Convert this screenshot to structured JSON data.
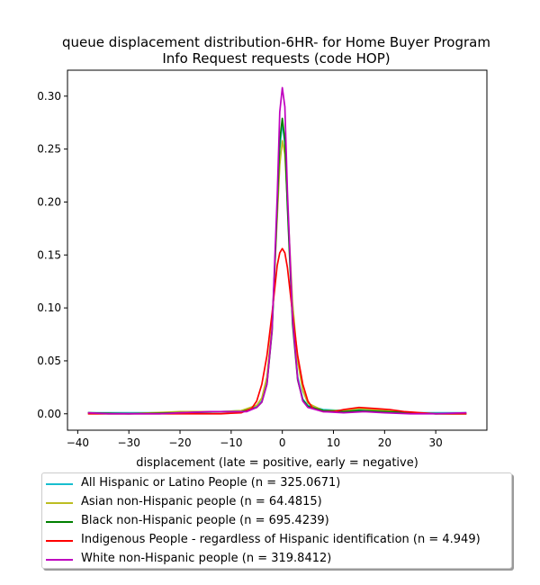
{
  "chart_data": {
    "type": "line",
    "title_line1": "queue displacement distribution-6HR-  for Home Buyer Program",
    "title_line2": "Info Request  requests (code HOP)",
    "xlabel": "displacement (late = positive, early = negative)",
    "ylabel": "",
    "xlim": [
      -42,
      40
    ],
    "ylim": [
      -0.0155,
      0.3245
    ],
    "xticks": [
      -40,
      -30,
      -20,
      -10,
      0,
      10,
      20,
      30
    ],
    "yticks": [
      0.0,
      0.05,
      0.1,
      0.15,
      0.2,
      0.25,
      0.3
    ],
    "xtick_labels": [
      "−40",
      "−30",
      "−20",
      "−10",
      "0",
      "10",
      "20",
      "30"
    ],
    "ytick_labels": [
      "0.00",
      "0.05",
      "0.10",
      "0.15",
      "0.20",
      "0.25",
      "0.30"
    ],
    "grid": false,
    "legend_position": "below",
    "series": [
      {
        "name": "All Hispanic or Latino People (n = 325.0671)",
        "color": "#17becf",
        "points": [
          [
            -38,
            0.001
          ],
          [
            -30,
            0.001
          ],
          [
            -20,
            0.001
          ],
          [
            -12,
            0.002
          ],
          [
            -8,
            0.003
          ],
          [
            -5,
            0.007
          ],
          [
            -4,
            0.012
          ],
          [
            -3,
            0.03
          ],
          [
            -2,
            0.08
          ],
          [
            -1,
            0.19
          ],
          [
            -0.5,
            0.25
          ],
          [
            0,
            0.275
          ],
          [
            0.5,
            0.255
          ],
          [
            1,
            0.2
          ],
          [
            2,
            0.09
          ],
          [
            3,
            0.035
          ],
          [
            4,
            0.014
          ],
          [
            5,
            0.008
          ],
          [
            8,
            0.004
          ],
          [
            12,
            0.003
          ],
          [
            15,
            0.004
          ],
          [
            20,
            0.002
          ],
          [
            25,
            0.001
          ],
          [
            30,
            0.001
          ],
          [
            36,
            0.001
          ]
        ]
      },
      {
        "name": "Asian non-Hispanic people (n = 64.4815)",
        "color": "#bcbd22",
        "points": [
          [
            -38,
            0.0
          ],
          [
            -30,
            0.0
          ],
          [
            -20,
            0.002
          ],
          [
            -12,
            0.002
          ],
          [
            -8,
            0.003
          ],
          [
            -5,
            0.008
          ],
          [
            -4,
            0.015
          ],
          [
            -3,
            0.035
          ],
          [
            -2,
            0.085
          ],
          [
            -1,
            0.185
          ],
          [
            -0.5,
            0.235
          ],
          [
            0,
            0.258
          ],
          [
            0.5,
            0.245
          ],
          [
            1,
            0.2
          ],
          [
            2,
            0.105
          ],
          [
            3,
            0.05
          ],
          [
            4,
            0.022
          ],
          [
            5,
            0.01
          ],
          [
            8,
            0.003
          ],
          [
            12,
            0.003
          ],
          [
            15,
            0.005
          ],
          [
            20,
            0.003
          ],
          [
            25,
            0.001
          ],
          [
            30,
            0.0
          ],
          [
            36,
            0.0
          ]
        ]
      },
      {
        "name": "Black non-Hispanic people (n = 695.4239)",
        "color": "#008000",
        "points": [
          [
            -38,
            0.001
          ],
          [
            -30,
            0.0
          ],
          [
            -20,
            0.001
          ],
          [
            -12,
            0.002
          ],
          [
            -8,
            0.002
          ],
          [
            -5,
            0.006
          ],
          [
            -4,
            0.011
          ],
          [
            -3,
            0.028
          ],
          [
            -2,
            0.078
          ],
          [
            -1,
            0.195
          ],
          [
            -0.5,
            0.258
          ],
          [
            0,
            0.279
          ],
          [
            0.5,
            0.258
          ],
          [
            1,
            0.195
          ],
          [
            2,
            0.085
          ],
          [
            3,
            0.032
          ],
          [
            4,
            0.013
          ],
          [
            5,
            0.007
          ],
          [
            8,
            0.003
          ],
          [
            12,
            0.002
          ],
          [
            15,
            0.003
          ],
          [
            20,
            0.002
          ],
          [
            25,
            0.001
          ],
          [
            30,
            0.0
          ],
          [
            36,
            0.0
          ]
        ]
      },
      {
        "name": "Indigenous People - regardless of Hispanic identification (n = 4.949)",
        "color": "#ff0000",
        "points": [
          [
            -38,
            0.0
          ],
          [
            -30,
            0.0
          ],
          [
            -20,
            0.0
          ],
          [
            -12,
            0.0
          ],
          [
            -8,
            0.001
          ],
          [
            -6,
            0.005
          ],
          [
            -5,
            0.012
          ],
          [
            -4,
            0.028
          ],
          [
            -3,
            0.055
          ],
          [
            -2,
            0.095
          ],
          [
            -1,
            0.14
          ],
          [
            -0.5,
            0.152
          ],
          [
            0,
            0.156
          ],
          [
            0.5,
            0.152
          ],
          [
            1,
            0.138
          ],
          [
            2,
            0.095
          ],
          [
            3,
            0.055
          ],
          [
            4,
            0.028
          ],
          [
            5,
            0.012
          ],
          [
            6,
            0.005
          ],
          [
            8,
            0.002
          ],
          [
            10,
            0.002
          ],
          [
            12,
            0.004
          ],
          [
            15,
            0.006
          ],
          [
            18,
            0.005
          ],
          [
            21,
            0.004
          ],
          [
            24,
            0.002
          ],
          [
            27,
            0.001
          ],
          [
            30,
            0.0
          ],
          [
            36,
            0.0
          ]
        ]
      },
      {
        "name": "White non-Hispanic people (n = 319.8412)",
        "color": "#bf00bf",
        "points": [
          [
            -38,
            0.001
          ],
          [
            -34,
            0.0
          ],
          [
            -30,
            0.0
          ],
          [
            -24,
            0.0
          ],
          [
            -20,
            0.001
          ],
          [
            -14,
            0.002
          ],
          [
            -10,
            0.002
          ],
          [
            -7,
            0.002
          ],
          [
            -5,
            0.006
          ],
          [
            -4,
            0.011
          ],
          [
            -3,
            0.028
          ],
          [
            -2,
            0.08
          ],
          [
            -1,
            0.205
          ],
          [
            -0.5,
            0.285
          ],
          [
            0,
            0.308
          ],
          [
            0.5,
            0.29
          ],
          [
            1,
            0.21
          ],
          [
            2,
            0.09
          ],
          [
            3,
            0.033
          ],
          [
            4,
            0.012
          ],
          [
            5,
            0.006
          ],
          [
            8,
            0.002
          ],
          [
            12,
            0.001
          ],
          [
            16,
            0.002
          ],
          [
            20,
            0.001
          ],
          [
            25,
            0.0
          ],
          [
            30,
            0.0
          ],
          [
            36,
            0.001
          ]
        ]
      }
    ]
  }
}
